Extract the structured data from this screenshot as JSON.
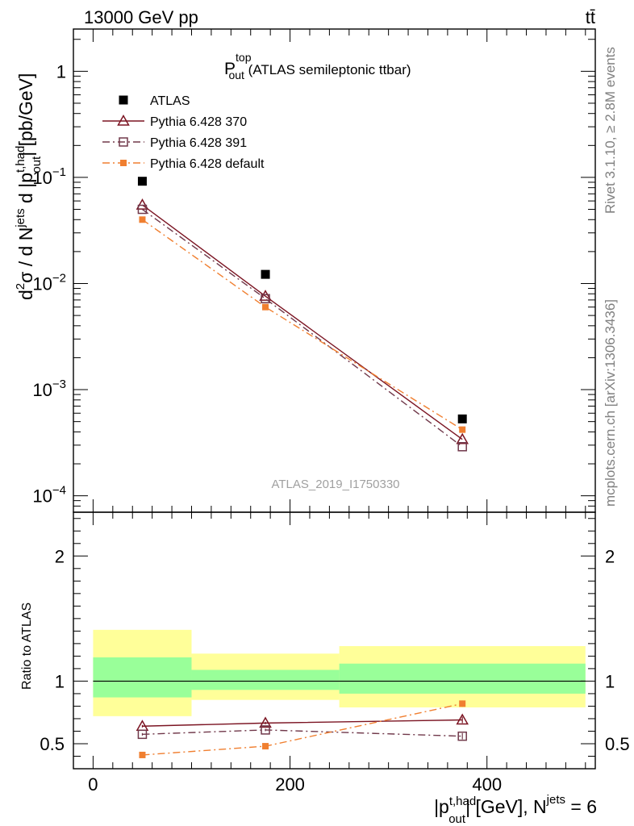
{
  "header": {
    "energy_label": "13000 GeV pp",
    "process_label": "tt̄"
  },
  "side_labels": {
    "rivet": "Rivet 3.1.10, ≥ 2.8M events",
    "mcplots": "mcplots.cern.ch [arXiv:1306.3436]"
  },
  "chart_data": [
    {
      "type": "scatter",
      "panel": "main",
      "title": {
        "base": "P",
        "sup": "top",
        "sub": "out",
        "rest": " (ATLAS semileptonic ttbar)"
      },
      "watermark": "ATLAS_2019_I1750330",
      "ylabel": {
        "a": "d",
        "sup1": "2",
        "b": "σ  /  d N",
        "sup2": "jets",
        "c": " d |p",
        "sup3": "t,had",
        "sub3": "out",
        "d": "| [pb/GeV]"
      },
      "yscale": "log",
      "ylim": [
        7e-05,
        2.5
      ],
      "xlim": [
        -20,
        510
      ],
      "yticks": [
        {
          "value": 0.0001,
          "base": "10",
          "exp": "−4"
        },
        {
          "value": 0.001,
          "base": "10",
          "exp": "−3"
        },
        {
          "value": 0.01,
          "base": "10",
          "exp": "−2"
        },
        {
          "value": 0.1,
          "base": "10",
          "exp": "−1"
        },
        {
          "value": 1,
          "base": "1",
          "exp": ""
        }
      ],
      "legend_position": "top-left",
      "series": [
        {
          "name": "ATLAS",
          "marker": "square-filled",
          "color": "#000000",
          "line": "none",
          "x": [
            50,
            175,
            375
          ],
          "y": [
            0.092,
            0.0122,
            0.00053
          ]
        },
        {
          "name": "Pythia 6.428 370",
          "marker": "triangle-open",
          "color": "#7b1422",
          "line": "solid",
          "x": [
            50,
            175,
            375
          ],
          "y": [
            0.055,
            0.0076,
            0.00034
          ]
        },
        {
          "name": "Pythia 6.428 391",
          "marker": "square-open",
          "color": "#70384a",
          "line": "dashdot",
          "x": [
            50,
            175,
            375
          ],
          "y": [
            0.05,
            0.0072,
            0.00029
          ]
        },
        {
          "name": "Pythia 6.428 default",
          "marker": "square-filled-small",
          "color": "#f07f30",
          "line": "dashdot",
          "x": [
            50,
            175,
            375
          ],
          "y": [
            0.04,
            0.006,
            0.00042
          ]
        }
      ]
    },
    {
      "type": "scatter",
      "panel": "ratio",
      "ylabel": "Ratio to ATLAS",
      "yscale": "linear",
      "ylim": [
        0.3,
        2.35
      ],
      "xlim": [
        -20,
        510
      ],
      "yticks": [
        {
          "value": 0.5,
          "label": "0.5"
        },
        {
          "value": 1,
          "label": "1"
        },
        {
          "value": 2,
          "label": "2"
        }
      ],
      "xticks": [
        {
          "value": 0,
          "label": "0"
        },
        {
          "value": 200,
          "label": "200"
        },
        {
          "value": 400,
          "label": "400"
        }
      ],
      "xlabel": {
        "a": "|p",
        "sup": "t,had",
        "sub": "out",
        "b": "| [GeV], N",
        "sup2": "jets",
        "c": " = 6"
      },
      "reference_line": 1,
      "bands": [
        {
          "x0": 0,
          "x1": 100,
          "yellow": [
            0.72,
            1.41
          ],
          "green": [
            0.87,
            1.19
          ]
        },
        {
          "x0": 100,
          "x1": 250,
          "yellow": [
            0.85,
            1.22
          ],
          "green": [
            0.93,
            1.09
          ]
        },
        {
          "x0": 250,
          "x1": 500,
          "yellow": [
            0.79,
            1.28
          ],
          "green": [
            0.9,
            1.14
          ]
        }
      ],
      "series": [
        {
          "name": "Pythia 6.428 370",
          "x": [
            50,
            175,
            375
          ],
          "y": [
            0.64,
            0.665,
            0.69
          ],
          "err": [
            0.01,
            0.01,
            0.025
          ]
        },
        {
          "name": "Pythia 6.428 391",
          "x": [
            50,
            175,
            375
          ],
          "y": [
            0.575,
            0.61,
            0.56
          ],
          "err": [
            0.01,
            0.01,
            0.025
          ]
        },
        {
          "name": "Pythia 6.428 default",
          "x": [
            50,
            175,
            375
          ],
          "y": [
            0.41,
            0.48,
            0.82
          ],
          "err": [
            0.005,
            0.008,
            0.025
          ]
        }
      ]
    }
  ]
}
